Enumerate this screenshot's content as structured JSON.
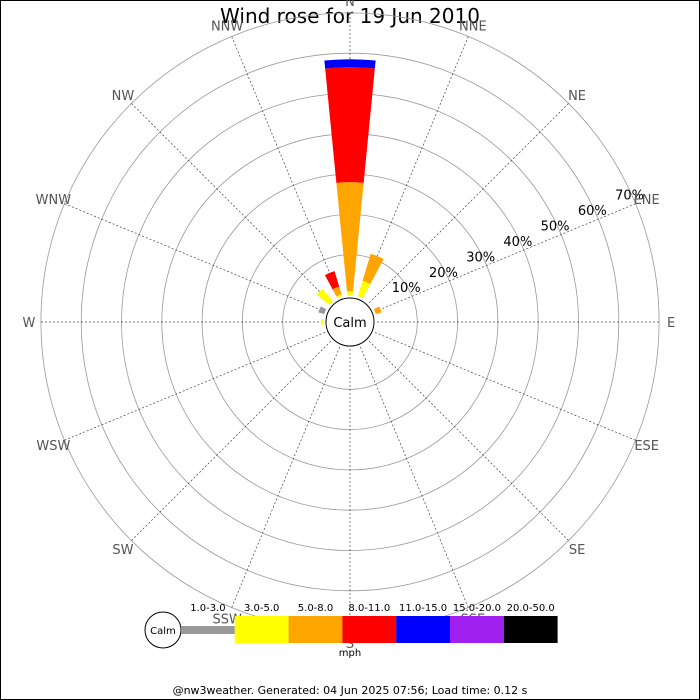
{
  "title": "Wind rose for 19 Jun 2010",
  "footer": "@nw3weather. Generated: 04 Jun 2025 07:56; Load time: 0.12 s",
  "colors": {
    "background": "#ffffff",
    "ring": "#999999",
    "spoke": "#444444",
    "direction_label": "#555555"
  },
  "chart_data": {
    "type": "windrose",
    "title": "Wind rose for 19 Jun 2010",
    "calm_label": "Calm",
    "unit": "mph",
    "directions": [
      "N",
      "NNE",
      "NE",
      "ENE",
      "E",
      "ESE",
      "SE",
      "SSE",
      "S",
      "SSW",
      "SW",
      "WSW",
      "W",
      "WNW",
      "NW",
      "NNW"
    ],
    "ring_labels": [
      "10%",
      "20%",
      "30%",
      "40%",
      "50%",
      "60%",
      "70%"
    ],
    "ring_values": [
      10,
      20,
      30,
      40,
      50,
      60,
      70
    ],
    "legend": [
      {
        "name": "1.0-3.0",
        "color": "#999999"
      },
      {
        "name": "3.0-5.0",
        "color": "#ffff00"
      },
      {
        "name": "5.0-8.0",
        "color": "#ffa500"
      },
      {
        "name": "8.0-11.0",
        "color": "#ff0000"
      },
      {
        "name": "11.0-15.0",
        "color": "#0000ff"
      },
      {
        "name": "15.0-20.0",
        "color": "#a020f0"
      },
      {
        "name": "20.0-50.0",
        "color": "#000000"
      }
    ],
    "series": [
      {
        "direction": "N",
        "segments": [
          {
            "band": "3.0-5.0",
            "from": 0,
            "to": 1
          },
          {
            "band": "5.0-8.0",
            "from": 1,
            "to": 28
          },
          {
            "band": "8.0-11.0",
            "from": 28,
            "to": 56.5
          },
          {
            "band": "11.0-15.0",
            "from": 56.5,
            "to": 58.5
          }
        ]
      },
      {
        "direction": "NNE",
        "segments": [
          {
            "band": "3.0-5.0",
            "from": 0,
            "to": 4
          },
          {
            "band": "5.0-8.0",
            "from": 4,
            "to": 11
          }
        ]
      },
      {
        "direction": "ENE",
        "segments": [
          {
            "band": "5.0-8.0",
            "from": 0,
            "to": 1.5
          }
        ]
      },
      {
        "direction": "NNW",
        "segments": [
          {
            "band": "3.0-5.0",
            "from": 0,
            "to": 0.5
          },
          {
            "band": "5.0-8.0",
            "from": 0.5,
            "to": 2.5
          },
          {
            "band": "8.0-11.0",
            "from": 2.5,
            "to": 6.5
          }
        ]
      },
      {
        "direction": "NW",
        "segments": [
          {
            "band": "3.0-5.0",
            "from": 0,
            "to": 4
          }
        ]
      },
      {
        "direction": "WNW",
        "segments": [
          {
            "band": "1.0-3.0",
            "from": 0,
            "to": 1.5
          }
        ]
      },
      {
        "direction": "W",
        "segments": [
          {
            "band": "3.0-5.0",
            "from": 0,
            "to": 0.5
          }
        ]
      }
    ]
  }
}
